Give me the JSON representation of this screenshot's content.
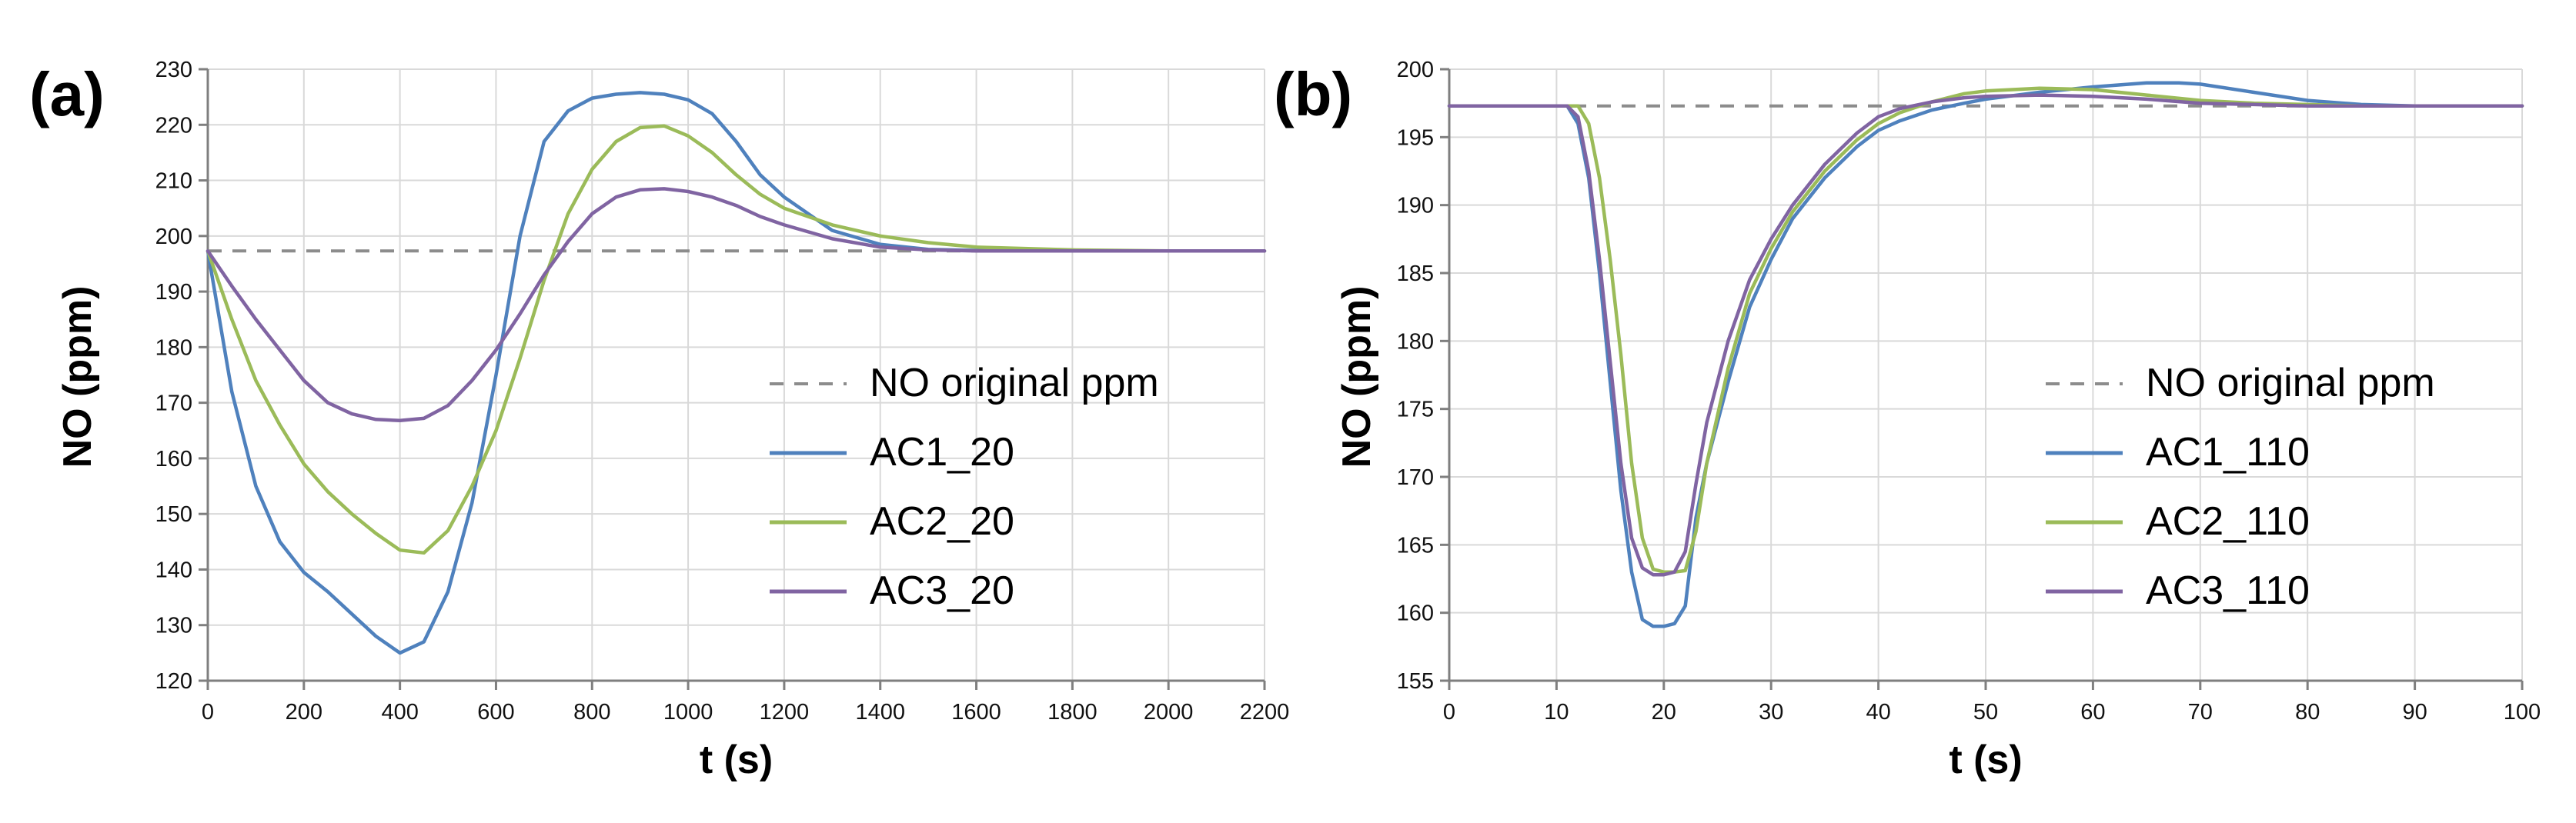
{
  "colors": {
    "reference": "#8c8c8c",
    "ac1": "#4f81bd",
    "ac2": "#9bbb59",
    "ac3": "#8064a2",
    "grid": "#d9d9d9",
    "axis": "#7f7f7f"
  },
  "chart_data": [
    {
      "type": "line",
      "panel_label": "(a)",
      "title": "",
      "xlabel": "t (s)",
      "ylabel": "NO (ppm)",
      "xlim": [
        0,
        2200
      ],
      "ylim": [
        120,
        230
      ],
      "xticks": [
        0,
        200,
        400,
        600,
        800,
        1000,
        1200,
        1400,
        1600,
        1800,
        2000,
        2200
      ],
      "yticks": [
        120,
        130,
        140,
        150,
        160,
        170,
        180,
        190,
        200,
        210,
        220,
        230
      ],
      "grid": true,
      "legend_position": "right-center",
      "series": [
        {
          "name": "NO original ppm",
          "style": "dashed",
          "color_key": "reference",
          "x": [
            0,
            2200
          ],
          "y": [
            197.3,
            197.3
          ]
        },
        {
          "name": "AC1_20",
          "style": "solid",
          "color_key": "ac1",
          "x": [
            0,
            50,
            100,
            150,
            200,
            250,
            300,
            350,
            400,
            450,
            500,
            550,
            600,
            650,
            700,
            750,
            800,
            850,
            900,
            950,
            1000,
            1050,
            1100,
            1150,
            1200,
            1300,
            1400,
            1500,
            1600,
            1800,
            2000,
            2200
          ],
          "y": [
            197.3,
            172,
            155,
            145,
            139.5,
            136,
            132,
            128,
            125,
            127,
            136,
            152,
            175,
            200,
            217,
            222.5,
            224.8,
            225.5,
            225.8,
            225.5,
            224.5,
            222,
            217,
            211,
            207,
            201,
            198.5,
            197.6,
            197.4,
            197.3,
            197.3,
            197.3
          ]
        },
        {
          "name": "AC2_20",
          "style": "solid",
          "color_key": "ac2",
          "x": [
            0,
            50,
            100,
            150,
            200,
            250,
            300,
            350,
            400,
            450,
            500,
            550,
            600,
            650,
            700,
            750,
            800,
            850,
            900,
            950,
            1000,
            1050,
            1100,
            1150,
            1200,
            1300,
            1400,
            1500,
            1600,
            1800,
            2000,
            2200
          ],
          "y": [
            197.3,
            185,
            174,
            166,
            159,
            154,
            150,
            146.5,
            143.5,
            143,
            147,
            155,
            165,
            178,
            192,
            204,
            212,
            217,
            219.5,
            219.8,
            218,
            215,
            211,
            207.5,
            205,
            202,
            200,
            198.8,
            198,
            197.5,
            197.3,
            197.3
          ]
        },
        {
          "name": "AC3_20",
          "style": "solid",
          "color_key": "ac3",
          "x": [
            0,
            50,
            100,
            150,
            200,
            250,
            300,
            350,
            400,
            450,
            500,
            550,
            600,
            650,
            700,
            750,
            800,
            850,
            900,
            950,
            1000,
            1050,
            1100,
            1150,
            1200,
            1300,
            1400,
            1500,
            1600,
            1800,
            2000,
            2200
          ],
          "y": [
            197.3,
            191,
            185,
            179.5,
            174,
            170,
            168,
            167,
            166.8,
            167.2,
            169.5,
            174,
            179.5,
            186,
            193,
            199,
            204,
            207,
            208.3,
            208.5,
            208,
            207,
            205.5,
            203.5,
            202,
            199.5,
            198,
            197.5,
            197.3,
            197.3,
            197.3,
            197.3
          ]
        }
      ]
    },
    {
      "type": "line",
      "panel_label": "(b)",
      "title": "",
      "xlabel": "t (s)",
      "ylabel": "NO (ppm)",
      "xlim": [
        0,
        100
      ],
      "ylim": [
        155,
        200
      ],
      "xticks": [
        0,
        10,
        20,
        30,
        40,
        50,
        60,
        70,
        80,
        90,
        100
      ],
      "yticks": [
        155,
        160,
        165,
        170,
        175,
        180,
        185,
        190,
        195,
        200
      ],
      "grid": true,
      "legend_position": "right-center",
      "series": [
        {
          "name": "NO original ppm",
          "style": "dashed",
          "color_key": "reference",
          "x": [
            0,
            100
          ],
          "y": [
            197.3,
            197.3
          ]
        },
        {
          "name": "AC1_110",
          "style": "solid",
          "color_key": "ac1",
          "x": [
            0,
            11,
            12,
            13,
            14,
            15,
            16,
            17,
            18,
            19,
            20,
            21,
            22,
            23,
            24,
            26,
            28,
            30,
            32,
            35,
            38,
            40,
            42,
            45,
            48,
            50,
            55,
            60,
            65,
            68,
            70,
            75,
            80,
            85,
            90,
            100
          ],
          "y": [
            197.3,
            197.3,
            196,
            192,
            185,
            177,
            169,
            163,
            159.5,
            159,
            159,
            159.2,
            160.5,
            167,
            171,
            177,
            182.5,
            186,
            189,
            192,
            194.3,
            195.5,
            196.2,
            197,
            197.5,
            197.8,
            198.3,
            198.7,
            199,
            199,
            198.9,
            198.3,
            197.7,
            197.4,
            197.3,
            197.3
          ]
        },
        {
          "name": "AC2_110",
          "style": "solid",
          "color_key": "ac2",
          "x": [
            0,
            12,
            13,
            14,
            15,
            16,
            17,
            18,
            19,
            20,
            21,
            22,
            23,
            24,
            26,
            28,
            30,
            32,
            35,
            38,
            40,
            42,
            45,
            48,
            50,
            55,
            60,
            65,
            70,
            75,
            80,
            85,
            90,
            100
          ],
          "y": [
            197.3,
            197.3,
            196,
            192,
            186,
            179,
            171,
            165.5,
            163.2,
            163,
            163,
            163.1,
            166,
            171,
            178,
            183.5,
            186.8,
            189.5,
            192.5,
            194.8,
            196,
            196.8,
            197.6,
            198.2,
            198.4,
            198.6,
            198.5,
            198.1,
            197.7,
            197.5,
            197.4,
            197.3,
            197.3,
            197.3
          ]
        },
        {
          "name": "AC3_110",
          "style": "solid",
          "color_key": "ac3",
          "x": [
            0,
            11,
            12,
            13,
            14,
            15,
            16,
            17,
            18,
            19,
            20,
            21,
            22,
            23,
            24,
            26,
            28,
            30,
            32,
            35,
            38,
            40,
            42,
            45,
            48,
            50,
            55,
            60,
            65,
            70,
            75,
            80,
            90,
            100
          ],
          "y": [
            197.3,
            197.3,
            196.5,
            192.5,
            186,
            178.5,
            171,
            165.5,
            163.3,
            162.8,
            162.8,
            163,
            164.5,
            169.5,
            174,
            180,
            184.5,
            187.5,
            190,
            193,
            195.3,
            196.5,
            197.1,
            197.6,
            197.9,
            198,
            198.1,
            198,
            197.8,
            197.5,
            197.4,
            197.3,
            197.3,
            197.3
          ]
        }
      ]
    }
  ]
}
